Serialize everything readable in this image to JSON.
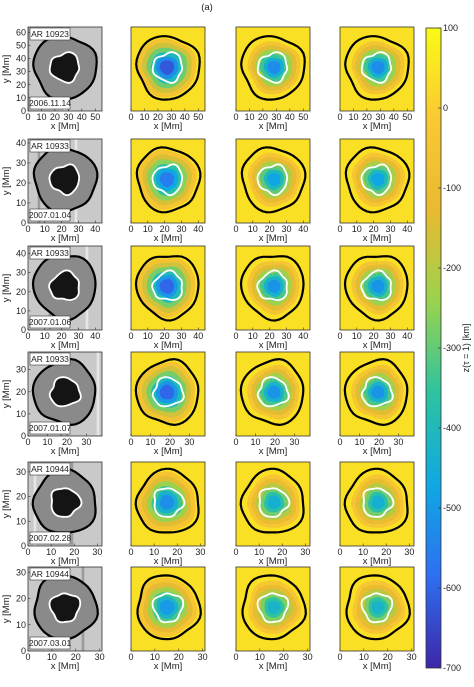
{
  "chart_data": {
    "type": "heatmap",
    "panel_header": "(a)",
    "colorbar": {
      "label": "z(τ = 1) [km]",
      "min": -700,
      "max": 100,
      "ticks": [
        "100",
        "0",
        "-100",
        "-200",
        "-300",
        "-400",
        "-500",
        "-600",
        "-700"
      ],
      "colors": [
        "#3e26a8",
        "#2e6ff1",
        "#0fa8e3",
        "#2cc3a0",
        "#99d34e",
        "#e9ba30",
        "#fac832",
        "#f9fb15"
      ]
    },
    "xlabel": "x [Mm]",
    "ylabel": "y [Mm]",
    "rows": [
      {
        "region": "AR 10923",
        "date": "2006.11.14",
        "xticks": [
          "0",
          "10",
          "20",
          "30",
          "40",
          "50"
        ],
        "yticks": [
          "0",
          "10",
          "20",
          "30",
          "40",
          "50",
          "60"
        ],
        "xmax": 55,
        "ymax": 64,
        "depth": -620
      },
      {
        "region": "AR 10933",
        "date": "2007.01.04",
        "xticks": [
          "0",
          "10",
          "20",
          "30",
          "40"
        ],
        "yticks": [
          "0",
          "10",
          "20",
          "30",
          "40"
        ],
        "xmax": 44,
        "ymax": 42,
        "depth": -560
      },
      {
        "region": "AR 10933",
        "date": "2007.01.06",
        "xticks": [
          "0",
          "10",
          "20",
          "30",
          "40"
        ],
        "yticks": [
          "0",
          "10",
          "20",
          "30",
          "40"
        ],
        "xmax": 44,
        "ymax": 44,
        "depth": -600
      },
      {
        "region": "AR 10933",
        "date": "2007.01.07",
        "xticks": [
          "0",
          "10",
          "20",
          "30"
        ],
        "yticks": [
          "0",
          "10",
          "20",
          "30"
        ],
        "xmax": 38,
        "ymax": 38,
        "depth": -600
      },
      {
        "region": "AR 10944",
        "date": "2007.02.28",
        "xticks": [
          "0",
          "10",
          "20",
          "30"
        ],
        "yticks": [
          "0",
          "10",
          "20",
          "30"
        ],
        "xmax": 32,
        "ymax": 34,
        "depth": -520
      },
      {
        "region": "AR 10944",
        "date": "2007.03.01",
        "xticks": [
          "0",
          "10",
          "20",
          "30"
        ],
        "yticks": [
          "0",
          "10",
          "20",
          "30"
        ],
        "xmax": 31,
        "ymax": 32,
        "depth": -500
      }
    ]
  }
}
